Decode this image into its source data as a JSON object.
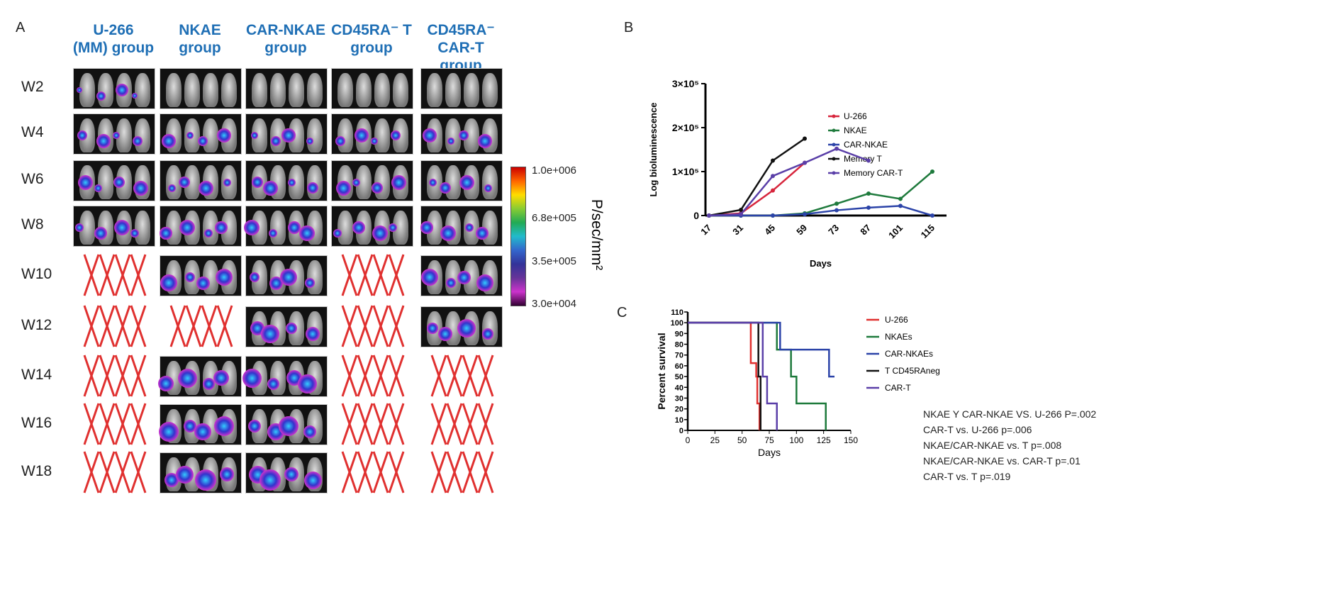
{
  "panels": {
    "a": "A",
    "b": "B",
    "c": "C"
  },
  "panel_a": {
    "columns": [
      "U-266\n(MM) group",
      "NKAE\ngroup",
      "CAR-NKAE\ngroup",
      "CD45RA⁻ T\ngroup",
      "CD45RA⁻\nCAR-T group"
    ],
    "rows": [
      "W2",
      "W4",
      "W6",
      "W8",
      "W10",
      "W12",
      "W14",
      "W16",
      "W18"
    ],
    "cells": [
      [
        "image",
        "image",
        "image",
        "image",
        "cross",
        "cross",
        "cross",
        "cross",
        "cross"
      ],
      [
        "image",
        "image",
        "image",
        "image",
        "image",
        "cross",
        "image",
        "image",
        "image"
      ],
      [
        "image",
        "image",
        "image",
        "image",
        "image",
        "image",
        "image",
        "image",
        "image"
      ],
      [
        "image",
        "image",
        "image",
        "image",
        "cross",
        "cross",
        "cross",
        "cross",
        "cross"
      ],
      [
        "image",
        "image",
        "image",
        "image",
        "image",
        "image",
        "cross",
        "cross",
        "cross"
      ]
    ],
    "colorbar": {
      "labels": [
        "1.0e+006",
        "6.8e+005",
        "3.5e+005",
        "3.0e+004"
      ],
      "unit": "P/sec/mm²"
    },
    "cross_color": "#e0302f"
  },
  "chart_data": [
    {
      "type": "line",
      "ylabel": "Log bioluminescence",
      "xlabel": "Days",
      "categories": [
        17,
        31,
        45,
        59,
        73,
        87,
        101,
        115
      ],
      "yticks": [
        "0",
        "1×10⁵",
        "2×10⁵",
        "3×10⁵"
      ],
      "ylim": [
        0,
        300000
      ],
      "legend": "right",
      "series": [
        {
          "name": "U-266",
          "color": "#d7263d",
          "values": [
            0,
            5000,
            57000,
            120000,
            null,
            null,
            null,
            null
          ]
        },
        {
          "name": "NKAE",
          "color": "#1e7a3c",
          "values": [
            0,
            0,
            0,
            5000,
            27000,
            50000,
            38000,
            100000
          ]
        },
        {
          "name": "CAR-NKAE",
          "color": "#2b43a8",
          "values": [
            0,
            0,
            0,
            3000,
            12000,
            18000,
            22000,
            0
          ]
        },
        {
          "name": "Memory T",
          "color": "#111111",
          "values": [
            0,
            13000,
            125000,
            175000,
            null,
            null,
            null,
            null
          ]
        },
        {
          "name": "Memory CAR-T",
          "color": "#5a3fa8",
          "values": [
            0,
            3000,
            90000,
            120000,
            152000,
            125000,
            null,
            null
          ]
        }
      ]
    },
    {
      "type": "line",
      "subtype": "kaplan-meier",
      "ylabel": "Percent survival",
      "xlabel": "Days",
      "xlim": [
        0,
        150
      ],
      "ylim": [
        0,
        110
      ],
      "xticks": [
        0,
        25,
        50,
        75,
        100,
        125,
        150
      ],
      "yticks": [
        0,
        10,
        20,
        30,
        40,
        50,
        60,
        70,
        80,
        90,
        100,
        110
      ],
      "legend": "right",
      "series": [
        {
          "name": "U-266",
          "color": "#e0302f",
          "steps": [
            [
              0,
              100
            ],
            [
              58,
              62.5
            ],
            [
              63,
              50
            ],
            [
              64,
              25
            ],
            [
              66,
              0
            ]
          ]
        },
        {
          "name": "NKAEs",
          "color": "#1e7a3c",
          "steps": [
            [
              0,
              100
            ],
            [
              82,
              75
            ],
            [
              95,
              50
            ],
            [
              100,
              25
            ],
            [
              127,
              0
            ]
          ]
        },
        {
          "name": "CAR-NKAEs",
          "color": "#2b43a8",
          "steps": [
            [
              0,
              100
            ],
            [
              85,
              75
            ],
            [
              130,
              50
            ],
            [
              135,
              50
            ]
          ]
        },
        {
          "name": "T CD45RAneg",
          "color": "#111111",
          "steps": [
            [
              0,
              100
            ],
            [
              65,
              50
            ],
            [
              67,
              0
            ]
          ]
        },
        {
          "name": "CAR-T",
          "color": "#5a3fa8",
          "steps": [
            [
              0,
              100
            ],
            [
              69,
              50
            ],
            [
              73,
              25
            ],
            [
              82,
              0
            ]
          ]
        }
      ],
      "annotations": [
        "NKAE Y CAR-NKAE VS. U-266 P=.002",
        "CAR-T vs. U-266 p=.006",
        "NKAE/CAR-NKAE vs. T p=.008",
        "NKAE/CAR-NKAE vs. CAR-T p=.01",
        "CAR-T vs. T p=.019"
      ]
    }
  ]
}
